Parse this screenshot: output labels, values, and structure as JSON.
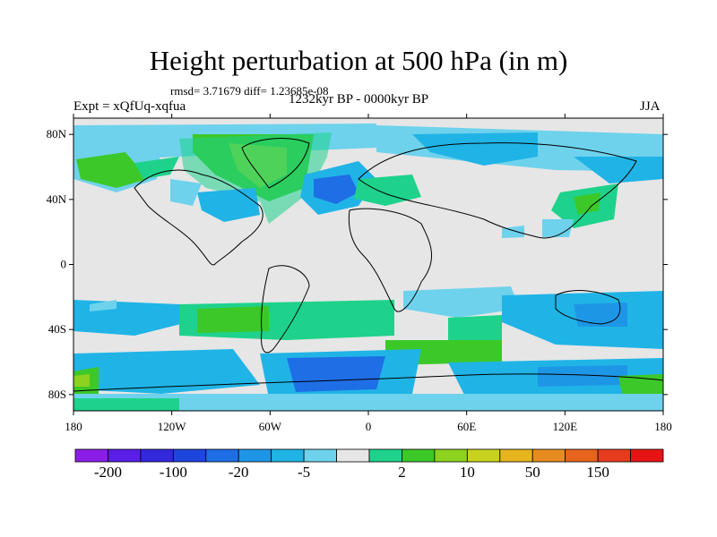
{
  "title": "Height perturbation at 500 hPa (in m)",
  "stats": "rmsd= 3.71679 diff= 1.23685e-08",
  "left_label": "Expt = xQfUq-xqfua",
  "center_label": "1232kyr BP - 0000kyr BP",
  "right_label": "JJA",
  "lat_ticks": [
    "80N",
    "40N",
    "0",
    "40S",
    "80S"
  ],
  "lon_ticks": [
    "180",
    "120W",
    "60W",
    "0",
    "60E",
    "120E",
    "180"
  ],
  "colorbar": {
    "colors": [
      "#8a1ee6",
      "#5a1ee6",
      "#3228dc",
      "#1e46dc",
      "#1e6ee6",
      "#1e96e6",
      "#20b4e6",
      "#6ed2ec",
      "#e6e6e6",
      "#1ed28c",
      "#3cc828",
      "#8cd21e",
      "#c8d21e",
      "#e6b41e",
      "#e68c1e",
      "#e6641e",
      "#e63c1e",
      "#e61414"
    ],
    "labels": [
      "-200",
      "-100",
      "-20",
      "-5",
      "2",
      "10",
      "50",
      "150"
    ]
  }
}
